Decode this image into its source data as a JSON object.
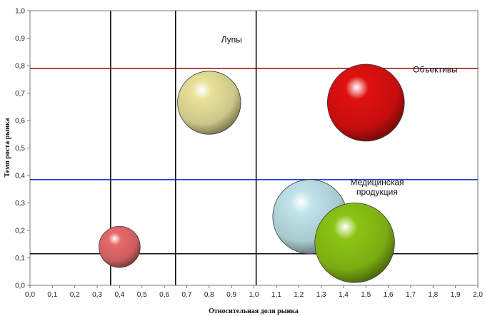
{
  "chart_data": {
    "type": "bubble",
    "xlabel": "Относительная доля рынка",
    "ylabel": "Темп роста рынка",
    "xlim": [
      0,
      2.0
    ],
    "ylim": [
      0,
      1.0
    ],
    "xticks": [
      "0,0",
      "0,1",
      "0,2",
      "0,3",
      "0,4",
      "0,5",
      "0,6",
      "0,7",
      "0,8",
      "0,9",
      "1,0",
      "1,1",
      "1,2",
      "1,3",
      "1,4",
      "1,5",
      "1,6",
      "1,7",
      "1,8",
      "1,9",
      "2,0"
    ],
    "yticks": [
      "0,0",
      "0,1",
      "0,2",
      "0,3",
      "0,4",
      "0,5",
      "0,6",
      "0,7",
      "0,8",
      "0,9",
      "1,0"
    ],
    "grid": false,
    "bubbles": [
      {
        "x": 0.4,
        "y": 0.14,
        "size": 0.075,
        "color": "#e86a6a"
      },
      {
        "x": 0.8,
        "y": 0.665,
        "size": 0.115,
        "color": "#e8e29a"
      },
      {
        "x": 1.5,
        "y": 0.665,
        "size": 0.14,
        "color": "#e01010"
      },
      {
        "x": 1.25,
        "y": 0.25,
        "size": 0.135,
        "color": "#bfe4ea"
      },
      {
        "x": 1.45,
        "y": 0.155,
        "size": 0.145,
        "color": "#8cc414"
      }
    ],
    "vlines": [
      {
        "x": 0.36,
        "color": "#111111"
      },
      {
        "x": 0.65,
        "color": "#111111"
      },
      {
        "x": 1.01,
        "color": "#111111"
      }
    ],
    "hlines": [
      {
        "y": 0.79,
        "color": "#a01818"
      },
      {
        "y": 0.385,
        "color": "#1f3fd6"
      },
      {
        "y": 0.115,
        "color": "#111111"
      }
    ],
    "annotations": [
      {
        "text": "Лупы",
        "x": 0.9,
        "y": 0.885
      },
      {
        "text": "Объективы",
        "x": 1.81,
        "y": 0.775
      },
      {
        "text": "Медицинская",
        "x": 1.55,
        "y": 0.365
      },
      {
        "text": "продукция",
        "x": 1.55,
        "y": 0.33
      }
    ]
  }
}
